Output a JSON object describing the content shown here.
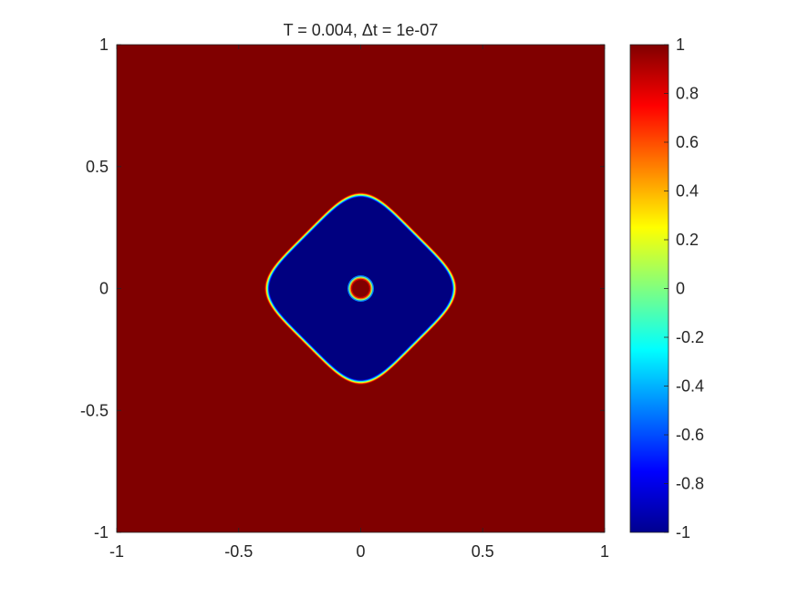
{
  "chart_data": {
    "type": "heatmap",
    "title": "T = 0.004,  Δt = 1e-07",
    "xlabel": "",
    "ylabel": "",
    "xlim": [
      -1,
      1
    ],
    "ylim": [
      -1,
      1
    ],
    "x_ticks": [
      "-1",
      "-0.5",
      "0",
      "0.5",
      "1"
    ],
    "x_tick_values": [
      -1,
      -0.5,
      0,
      0.5,
      1
    ],
    "y_ticks": [
      "-1",
      "-0.5",
      "0",
      "0.5",
      "1"
    ],
    "y_tick_values": [
      -1,
      -0.5,
      0,
      0.5,
      1
    ],
    "colormap": "jet",
    "clim": [
      -1,
      1
    ],
    "colorbar_ticks": [
      "-1",
      "-0.8",
      "-0.6",
      "-0.4",
      "-0.2",
      "0",
      "0.2",
      "0.4",
      "0.6",
      "0.8",
      "1"
    ],
    "colorbar_tick_values": [
      -1,
      -0.8,
      -0.6,
      -0.4,
      -0.2,
      0,
      0.2,
      0.4,
      0.6,
      0.8,
      1
    ],
    "field": {
      "background_value": 1,
      "inner_region_value": -1,
      "outer_interface_shape": "rounded diamond",
      "outer_interface_center": [
        0,
        0
      ],
      "outer_interface_half_diagonal": 0.43,
      "inner_circle_center": [
        0,
        0
      ],
      "inner_circle_radius": 0.035,
      "inner_circle_value": 1
    },
    "grid": false,
    "colors": {
      "background": "#800000",
      "inner_region": "#00008f",
      "axis": "#262626"
    }
  }
}
